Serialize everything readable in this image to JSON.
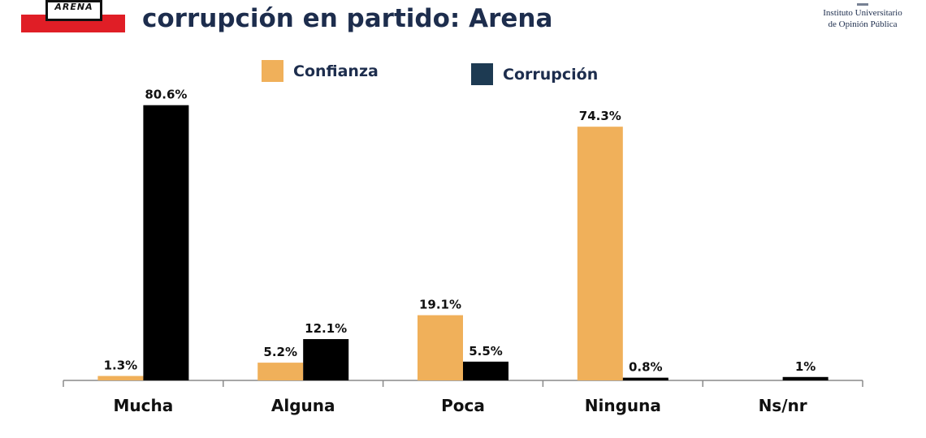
{
  "header": {
    "title": "corrupción en partido: Arena",
    "logo_text": "ARENA",
    "institute_line1": "Instituto Universitario",
    "institute_line2": "de Opinión Pública"
  },
  "colors": {
    "confianza": "#f0b05a",
    "corrupcion_legend": "#1d3a52",
    "corrupcion_bar": "#000000",
    "brand_red": "#e01e26"
  },
  "chart_data": {
    "type": "bar",
    "categories": [
      "Mucha",
      "Alguna",
      "Poca",
      "Ninguna",
      "Ns/nr"
    ],
    "series": [
      {
        "name": "Confianza",
        "values": [
          1.3,
          5.2,
          19.1,
          74.3,
          null
        ],
        "labels": [
          "1.3%",
          "5.2%",
          "19.1%",
          "74.3%",
          ""
        ]
      },
      {
        "name": "Corrupción",
        "values": [
          80.6,
          12.1,
          5.5,
          0.8,
          1
        ],
        "labels": [
          "80.6%",
          "12.1%",
          "5.5%",
          "0.8%",
          "1%"
        ]
      }
    ],
    "legend": "top",
    "ylim": [
      0,
      100
    ],
    "grid": false
  }
}
